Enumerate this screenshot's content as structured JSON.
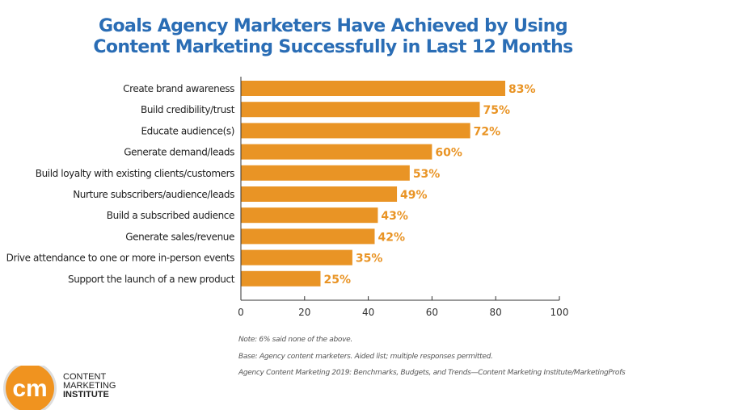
{
  "chart_data": {
    "type": "bar",
    "orientation": "horizontal",
    "title": "Goals Agency Marketers Have Achieved by Using Content Marketing Successfully in Last 12 Months",
    "title_lines": [
      "Goals Agency Marketers Have Achieved by Using",
      "Content Marketing Successfully in Last 12 Months"
    ],
    "categories": [
      "Create brand awareness",
      "Build credibility/trust",
      "Educate audience(s)",
      "Generate demand/leads",
      "Build loyalty with existing clients/customers",
      "Nurture subscribers/audience/leads",
      "Build a subscribed audience",
      "Generate sales/revenue",
      "Drive attendance to one or more in-person events",
      "Support the launch of a new product"
    ],
    "values": [
      83,
      75,
      72,
      60,
      53,
      49,
      43,
      42,
      35,
      25
    ],
    "data_labels": [
      "83%",
      "75%",
      "72%",
      "60%",
      "53%",
      "49%",
      "43%",
      "42%",
      "35%",
      "25%"
    ],
    "xlim": [
      0,
      100
    ],
    "xticks": [
      "0",
      "20",
      "40",
      "60",
      "80",
      "100"
    ],
    "xlabel": "",
    "ylabel": "",
    "grid": false,
    "bar_color": "#e99425",
    "label_color": "#e99425",
    "title_color": "#2a6db5"
  },
  "notes": [
    "Note: 6% said none of the above.",
    "Base: Agency content marketers. Aided list; multiple responses permitted.",
    "Agency Content Marketing 2019: Benchmarks, Budgets, and Trends—Content Marketing Institute/MarketingProfs"
  ],
  "logo": {
    "mark": "cm",
    "lines": [
      "CONTENT",
      "MARKETING",
      "INSTITUTE"
    ]
  }
}
